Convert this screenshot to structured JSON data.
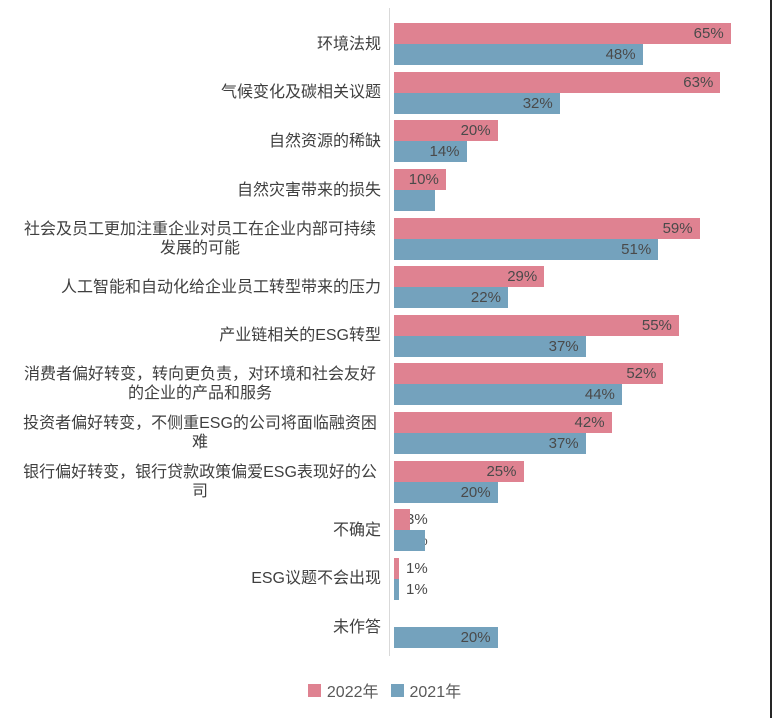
{
  "chart_data": {
    "type": "bar",
    "orientation": "horizontal",
    "unit": "%",
    "title": "",
    "xlabel": "",
    "ylabel": "",
    "xlim": [
      0,
      70
    ],
    "grid": false,
    "legend_position": "bottom",
    "value_labels": "inside-end",
    "axis_line_color": "#d9d9d9",
    "categories": [
      "环境法规",
      "气候变化及碳相关议题",
      "自然资源的稀缺",
      "自然灾害带来的损失",
      "社会及员工更加注重企业对员工在企业内部可持续发展的可能",
      "人工智能和自动化给企业员工转型带来的压力",
      "产业链相关的ESG转型",
      "消费者偏好转变，转向更负责，对环境和社会友好的企业的产品和服务",
      "投资者偏好转变，不侧重ESG的公司将面临融资困难",
      "银行偏好转变，银行贷款政策偏爱ESG表现好的公司",
      "不确定",
      "ESG议题不会出现",
      "未作答"
    ],
    "series": [
      {
        "name": "2022年",
        "color": "#df8291",
        "values": [
          65,
          63,
          20,
          10,
          59,
          29,
          55,
          52,
          42,
          25,
          3,
          1,
          null
        ]
      },
      {
        "name": "2021年",
        "color": "#74a2bd",
        "values": [
          48,
          32,
          14,
          8,
          51,
          22,
          37,
          44,
          37,
          20,
          6,
          1,
          20
        ]
      }
    ]
  },
  "style": {
    "category_label_color": "#3f3f3f",
    "value_label_color": "#4a4a4a",
    "legend_label_color": "#595959",
    "page_border_color": "#262626"
  }
}
